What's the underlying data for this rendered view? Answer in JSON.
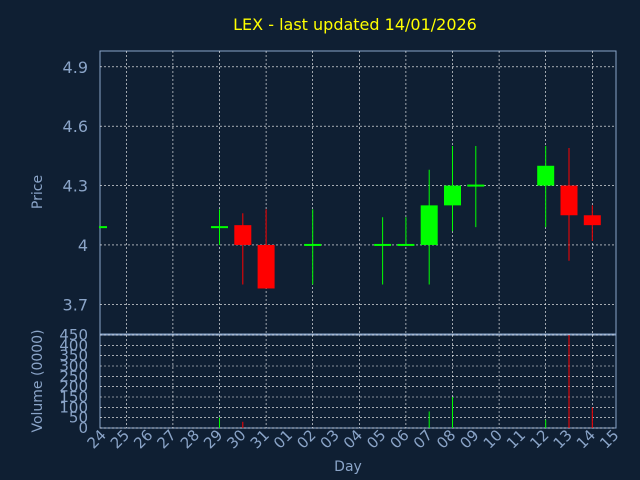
{
  "colors": {
    "background": "#0f1f33",
    "title": "#ffff00",
    "axis_text": "#8aa4c8",
    "grid": "#ffffff",
    "up": "#00ff00",
    "down": "#ff0000"
  },
  "chart_data": {
    "type": "candlestick",
    "title": "LEX - last updated 14/01/2026",
    "price_panel": {
      "ylabel": "Price",
      "ylim": [
        3.55,
        4.98
      ],
      "yticks": [
        3.7,
        4,
        4.3,
        4.6,
        4.9
      ],
      "ytick_labels": [
        "3.7",
        "4",
        "4.3",
        "4.6",
        "4.9"
      ]
    },
    "volume_panel": {
      "ylabel": "Volume (0000)",
      "ylim": [
        0,
        450
      ],
      "yticks": [
        0,
        50,
        100,
        150,
        200,
        250,
        300,
        350,
        400,
        450
      ],
      "ytick_labels": [
        "0",
        "50",
        "100",
        "150",
        "200",
        "250",
        "300",
        "350",
        "400",
        "450"
      ]
    },
    "xlabel": "Day",
    "x_labels": [
      "24",
      "25",
      "26",
      "27",
      "28",
      "29",
      "30",
      "31",
      "01",
      "02",
      "03",
      "04",
      "05",
      "06",
      "07",
      "08",
      "09",
      "10",
      "11",
      "12",
      "13",
      "14",
      "15"
    ],
    "candles": [
      {
        "i": 0,
        "open": 4.09,
        "high": 4.09,
        "low": 4.09,
        "close": 4.09,
        "volume": 0
      },
      {
        "i": 5,
        "open": 4.09,
        "high": 4.18,
        "low": 4.0,
        "close": 4.09,
        "volume": 50
      },
      {
        "i": 6,
        "open": 4.1,
        "high": 4.16,
        "low": 3.8,
        "close": 4.0,
        "volume": 30
      },
      {
        "i": 7,
        "open": 4.0,
        "high": 4.18,
        "low": 3.78,
        "close": 3.78,
        "volume": 0
      },
      {
        "i": 9,
        "open": 4.0,
        "high": 4.18,
        "low": 3.8,
        "close": 4.0,
        "volume": 0
      },
      {
        "i": 12,
        "open": 4.0,
        "high": 4.14,
        "low": 3.8,
        "close": 4.0,
        "volume": 0
      },
      {
        "i": 13,
        "open": 4.0,
        "high": 4.14,
        "low": 4.0,
        "close": 4.0,
        "volume": 0
      },
      {
        "i": 14,
        "open": 4.0,
        "high": 4.38,
        "low": 3.8,
        "close": 4.2,
        "volume": 80
      },
      {
        "i": 15,
        "open": 4.2,
        "high": 4.5,
        "low": 4.07,
        "close": 4.3,
        "volume": 150
      },
      {
        "i": 16,
        "open": 4.29,
        "high": 4.5,
        "low": 4.09,
        "close": 4.3,
        "volume": 0
      },
      {
        "i": 19,
        "open": 4.3,
        "high": 4.5,
        "low": 4.09,
        "close": 4.4,
        "volume": 40
      },
      {
        "i": 20,
        "open": 4.3,
        "high": 4.49,
        "low": 3.92,
        "close": 4.15,
        "volume": 450
      },
      {
        "i": 21,
        "open": 4.15,
        "high": 4.2,
        "low": 4.02,
        "close": 4.1,
        "volume": 100
      }
    ]
  }
}
